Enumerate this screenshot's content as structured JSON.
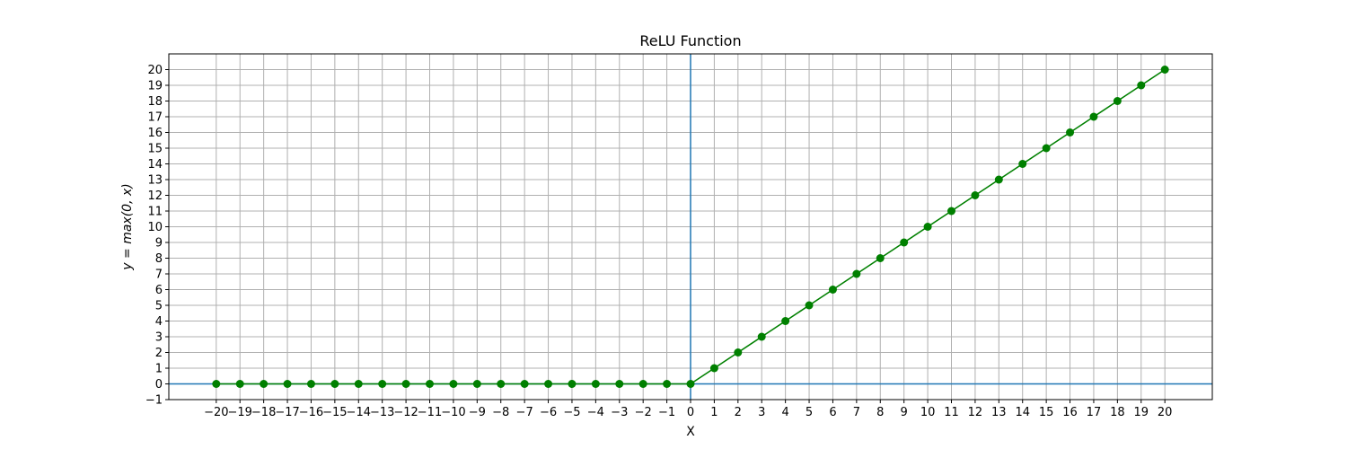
{
  "chart_data": {
    "type": "line",
    "title": "ReLU Function",
    "xlabel": "X",
    "ylabel": "y = max(0, x)",
    "xlim": [
      -22,
      22
    ],
    "ylim": [
      -1,
      21
    ],
    "x_ticks": [
      -20,
      -19,
      -18,
      -17,
      -16,
      -15,
      -14,
      -13,
      -12,
      -11,
      -10,
      -9,
      -8,
      -7,
      -6,
      -5,
      -4,
      -3,
      -2,
      -1,
      0,
      1,
      2,
      3,
      4,
      5,
      6,
      7,
      8,
      9,
      10,
      11,
      12,
      13,
      14,
      15,
      16,
      17,
      18,
      19,
      20
    ],
    "y_ticks": [
      -1,
      0,
      1,
      2,
      3,
      4,
      5,
      6,
      7,
      8,
      9,
      10,
      11,
      12,
      13,
      14,
      15,
      16,
      17,
      18,
      19,
      20
    ],
    "grid": true,
    "reference_lines": {
      "x": 0,
      "y": 0,
      "color": "#1f77b4"
    },
    "series": [
      {
        "color": "#008000",
        "marker": "circle",
        "x": [
          -20,
          -19,
          -18,
          -17,
          -16,
          -15,
          -14,
          -13,
          -12,
          -11,
          -10,
          -9,
          -8,
          -7,
          -6,
          -5,
          -4,
          -3,
          -2,
          -1,
          0,
          1,
          2,
          3,
          4,
          5,
          6,
          7,
          8,
          9,
          10,
          11,
          12,
          13,
          14,
          15,
          16,
          17,
          18,
          19,
          20
        ],
        "y": [
          0,
          0,
          0,
          0,
          0,
          0,
          0,
          0,
          0,
          0,
          0,
          0,
          0,
          0,
          0,
          0,
          0,
          0,
          0,
          0,
          0,
          1,
          2,
          3,
          4,
          5,
          6,
          7,
          8,
          9,
          10,
          11,
          12,
          13,
          14,
          15,
          16,
          17,
          18,
          19,
          20
        ]
      }
    ]
  }
}
